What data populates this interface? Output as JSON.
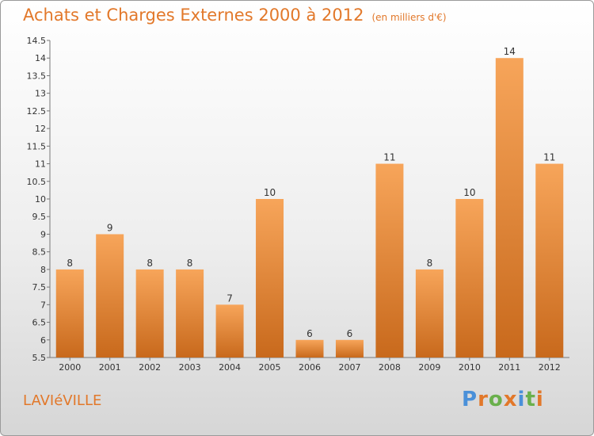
{
  "header": {
    "title": "Achats et Charges Externes 2000 à 2012",
    "unit": "(en milliers d'€)"
  },
  "place": "LAVIéVILLE",
  "logo": {
    "text": "Proxiti",
    "colors": [
      "#4a90d9",
      "#e2782a",
      "#6ab04c",
      "#e2782a",
      "#4a90d9",
      "#6ab04c",
      "#e2782a"
    ]
  },
  "colors": {
    "bar_top": "#f7a55a",
    "bar_bottom": "#c8691c",
    "accent": "#e2782a"
  },
  "chart_data": {
    "type": "bar",
    "categories": [
      "2000",
      "2001",
      "2002",
      "2003",
      "2004",
      "2005",
      "2006",
      "2007",
      "2008",
      "2009",
      "2010",
      "2011",
      "2012"
    ],
    "values": [
      8,
      9,
      8,
      8,
      7,
      10,
      6,
      6,
      11,
      8,
      10,
      14,
      11
    ],
    "ylim": [
      5.5,
      14.5
    ],
    "yticks": [
      "5.5",
      "6",
      "6.5",
      "7",
      "7.5",
      "8",
      "8.5",
      "9",
      "9.5",
      "10",
      "10.5",
      "11",
      "11.5",
      "12",
      "12.5",
      "13",
      "13.5",
      "14",
      "14.5"
    ],
    "grid": false
  }
}
